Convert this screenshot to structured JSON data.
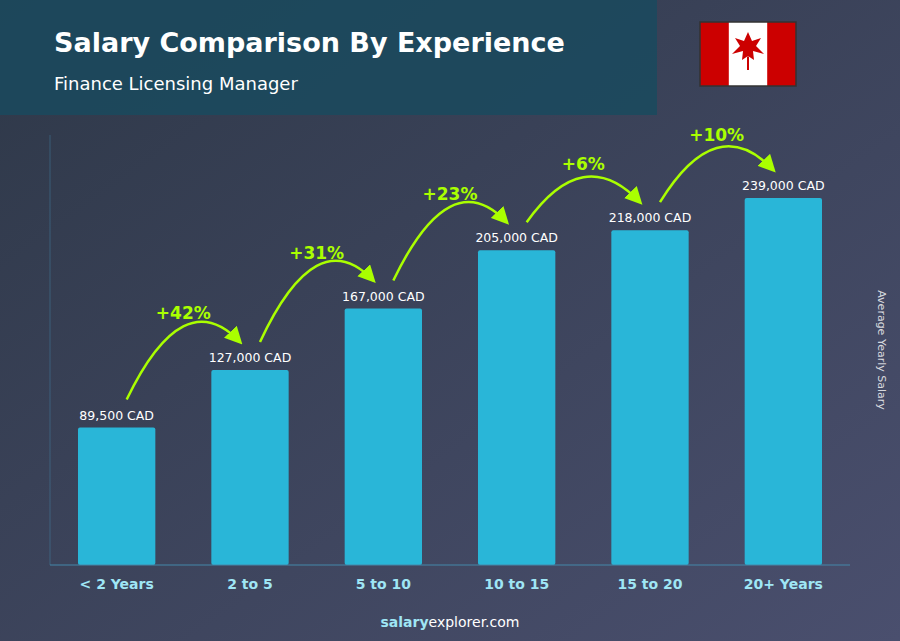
{
  "chart_data": {
    "type": "bar",
    "title": "Salary Comparison By Experience",
    "subtitle": "Finance Licensing Manager",
    "y_label": "Average Yearly Salary",
    "categories": [
      "< 2 Years",
      "2 to 5",
      "5 to 10",
      "10 to 15",
      "15 to 20",
      "20+ Years"
    ],
    "values": [
      89500,
      127000,
      167000,
      205000,
      218000,
      239000
    ],
    "value_labels": [
      "89,500 CAD",
      "127,000 CAD",
      "167,000 CAD",
      "205,000 CAD",
      "218,000 CAD",
      "239,000 CAD"
    ],
    "data_labels": true,
    "color": "#29b6d8",
    "ylim": [
      0,
      280000
    ],
    "tick_labels": "x",
    "grid": false,
    "annotations": [
      {
        "text": "+42%",
        "from": "< 2 Years",
        "to": "2 to 5",
        "color": "#aaff00"
      },
      {
        "text": "+31%",
        "from": "2 to 5",
        "to": "5 to 10",
        "color": "#aaff00"
      },
      {
        "text": "+23%",
        "from": "5 to 10",
        "to": "10 to 15",
        "color": "#aaff00"
      },
      {
        "text": "+6%",
        "from": "10 to 15",
        "to": "15 to 20",
        "color": "#aaff00"
      },
      {
        "text": "+10%",
        "from": "15 to 20",
        "to": "20+ Years",
        "color": "#aaff00"
      }
    ],
    "source": [
      "salary",
      "explorer.com"
    ]
  }
}
